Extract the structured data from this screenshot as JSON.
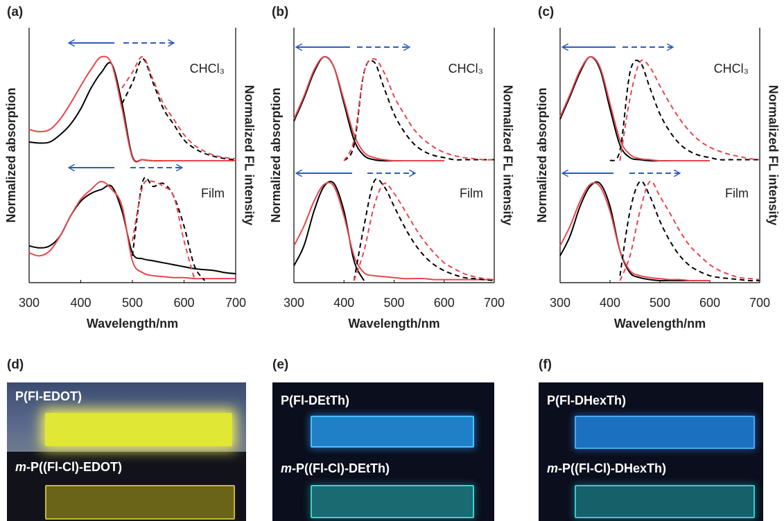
{
  "chart_data": [
    {
      "type": "line",
      "panel_label": "(a)",
      "xlabel": "Wavelength/nm",
      "ylabel": "Normalized absorption",
      "y2label": "Normalized FL intensity",
      "xlim": [
        300,
        700
      ],
      "xticks": [
        300,
        400,
        500,
        600,
        700
      ],
      "x": [
        300,
        320,
        340,
        360,
        380,
        400,
        420,
        440,
        460,
        480,
        500,
        520,
        540,
        560,
        580,
        600,
        620,
        640,
        660,
        680,
        700
      ],
      "subplots": [
        {
          "label": "CHCl₃",
          "ylim": [
            0,
            1
          ],
          "y2lim": [
            0,
            1
          ],
          "series": [
            {
              "color": "#000000",
              "dashed": false,
              "axis": "y",
              "values": [
                0.18,
                0.17,
                0.18,
                0.25,
                0.35,
                0.5,
                0.7,
                0.85,
                0.93,
                0.55,
                0.04,
                0.01,
                0,
                0,
                0,
                0,
                0,
                0,
                0,
                0,
                0
              ]
            },
            {
              "color": "#e8464b",
              "dashed": false,
              "axis": "y",
              "values": [
                0.3,
                0.28,
                0.3,
                0.4,
                0.55,
                0.72,
                0.88,
                1.0,
                0.93,
                0.5,
                0.03,
                0.01,
                0,
                0,
                0,
                0,
                0,
                0,
                0,
                0,
                0
              ]
            },
            {
              "color": "#000000",
              "dashed": true,
              "axis": "y2",
              "values": [
                null,
                null,
                null,
                null,
                null,
                null,
                null,
                null,
                null,
                0.55,
                0.75,
                0.98,
                0.75,
                0.5,
                0.35,
                0.2,
                0.12,
                0.07,
                0.04,
                0.02,
                0.01
              ]
            },
            {
              "color": "#e8464b",
              "dashed": true,
              "axis": "y2",
              "values": [
                null,
                null,
                null,
                null,
                null,
                null,
                null,
                null,
                null,
                0.7,
                0.85,
                1.0,
                0.78,
                0.55,
                0.4,
                0.25,
                0.15,
                0.09,
                0.05,
                0.03,
                0.02
              ]
            }
          ]
        },
        {
          "label": "Film",
          "ylim": [
            0,
            1
          ],
          "y2lim": [
            0,
            1
          ],
          "series": [
            {
              "color": "#000000",
              "dashed": false,
              "axis": "y",
              "values": [
                0.35,
                0.33,
                0.35,
                0.45,
                0.65,
                0.8,
                0.88,
                0.92,
                0.95,
                0.7,
                0.28,
                0.22,
                0.2,
                0.18,
                0.16,
                0.14,
                0.12,
                0.11,
                0.1,
                0.08,
                0.07
              ]
            },
            {
              "color": "#e8464b",
              "dashed": false,
              "axis": "y",
              "values": [
                0.28,
                0.25,
                0.3,
                0.45,
                0.65,
                0.82,
                0.92,
                1.0,
                0.92,
                0.75,
                0.2,
                0.08,
                0.05,
                0.04,
                0.03,
                0.03,
                0.02,
                0.02,
                0.02,
                0.02,
                0.02
              ]
            },
            {
              "color": "#000000",
              "dashed": true,
              "axis": "y2",
              "values": [
                null,
                null,
                null,
                null,
                null,
                null,
                null,
                null,
                null,
                null,
                0.25,
                1.0,
                0.95,
                0.98,
                0.85,
                0.55,
                0.15,
                0,
                null,
                null,
                null
              ]
            },
            {
              "color": "#e8464b",
              "dashed": true,
              "axis": "y2",
              "values": [
                null,
                null,
                null,
                null,
                null,
                null,
                null,
                null,
                null,
                null,
                0.4,
                0.95,
                1.0,
                0.95,
                0.85,
                0.4,
                0.02,
                null,
                null,
                null,
                null
              ]
            }
          ]
        }
      ]
    },
    {
      "type": "line",
      "panel_label": "(b)",
      "xlabel": "Wavelength/nm",
      "ylabel": "Normalized absorption",
      "y2label": "Normalized FL intensity",
      "xlim": [
        300,
        700
      ],
      "xticks": [
        300,
        400,
        500,
        600,
        700
      ],
      "x": [
        300,
        320,
        340,
        360,
        380,
        400,
        420,
        440,
        460,
        480,
        500,
        520,
        540,
        560,
        580,
        600,
        620,
        640,
        660,
        680,
        700
      ],
      "subplots": [
        {
          "label": "CHCl₃",
          "ylim": [
            0,
            1
          ],
          "y2lim": [
            0,
            1
          ],
          "series": [
            {
              "color": "#000000",
              "dashed": false,
              "axis": "y",
              "values": [
                0.38,
                0.6,
                0.85,
                1.0,
                0.9,
                0.55,
                0.2,
                0.05,
                0.01,
                0,
                0,
                0,
                0,
                0,
                0,
                0,
                null,
                null,
                null,
                null,
                null
              ]
            },
            {
              "color": "#e8464b",
              "dashed": false,
              "axis": "y",
              "values": [
                0.4,
                0.62,
                0.87,
                1.0,
                0.9,
                0.58,
                0.25,
                0.08,
                0.03,
                0.01,
                0,
                0,
                0,
                0,
                0,
                0,
                null,
                null,
                null,
                null,
                null
              ]
            },
            {
              "color": "#000000",
              "dashed": true,
              "axis": "y2",
              "values": [
                null,
                null,
                null,
                null,
                null,
                0,
                0.15,
                0.85,
                0.95,
                0.7,
                0.45,
                0.28,
                0.16,
                0.09,
                0.05,
                0.03,
                0.01,
                0.01,
                0.01,
                0.01,
                0.01
              ]
            },
            {
              "color": "#e8464b",
              "dashed": true,
              "axis": "y2",
              "values": [
                null,
                null,
                null,
                null,
                null,
                0,
                0.2,
                0.85,
                0.98,
                0.85,
                0.62,
                0.45,
                0.3,
                0.2,
                0.13,
                0.08,
                0.05,
                0.03,
                0.02,
                0.01,
                0.01
              ]
            }
          ]
        },
        {
          "label": "Film",
          "ylim": [
            0,
            1
          ],
          "y2lim": [
            0,
            1
          ],
          "series": [
            {
              "color": "#000000",
              "dashed": false,
              "axis": "y",
              "values": [
                0.15,
                0.35,
                0.7,
                0.95,
                0.98,
                0.7,
                0.2,
                0,
                null,
                null,
                null,
                null,
                null,
                null,
                null,
                null,
                null,
                null,
                null,
                null,
                null
              ]
            },
            {
              "color": "#e8464b",
              "dashed": false,
              "axis": "y",
              "values": [
                0.35,
                0.55,
                0.8,
                0.97,
                0.95,
                0.65,
                0.25,
                0.08,
                0.05,
                0.04,
                0.03,
                0.02,
                0.02,
                0.02,
                0.01,
                0.01,
                0.01,
                0.01,
                0.01,
                0.01,
                0.01
              ]
            },
            {
              "color": "#000000",
              "dashed": true,
              "axis": "y2",
              "values": [
                null,
                null,
                null,
                null,
                null,
                null,
                0,
                0.55,
                1.0,
                0.95,
                0.75,
                0.55,
                0.38,
                0.25,
                0.16,
                0.1,
                0.06,
                0.03,
                0.02,
                0.01,
                0
              ]
            },
            {
              "color": "#e8464b",
              "dashed": true,
              "axis": "y2",
              "values": [
                null,
                null,
                null,
                null,
                null,
                null,
                0,
                0.3,
                0.75,
                0.98,
                0.88,
                0.72,
                0.55,
                0.4,
                0.28,
                0.18,
                0.12,
                0.07,
                0.04,
                0.02,
                0.01
              ]
            }
          ]
        }
      ]
    },
    {
      "type": "line",
      "panel_label": "(c)",
      "xlabel": "Wavelength/nm",
      "ylabel": "Normalized absorption",
      "y2label": "Normalized FL intensity",
      "xlim": [
        300,
        700
      ],
      "xticks": [
        300,
        400,
        500,
        600,
        700
      ],
      "x": [
        300,
        320,
        340,
        360,
        380,
        400,
        420,
        440,
        460,
        480,
        500,
        520,
        540,
        560,
        580,
        600,
        620,
        640,
        660,
        680,
        700
      ],
      "subplots": [
        {
          "label": "CHCl₃",
          "ylim": [
            0,
            1
          ],
          "y2lim": [
            0,
            1
          ],
          "series": [
            {
              "color": "#000000",
              "dashed": false,
              "axis": "y",
              "values": [
                0.4,
                0.62,
                0.85,
                1.0,
                0.88,
                0.5,
                0.15,
                0.03,
                0.01,
                0,
                0,
                0,
                0,
                0,
                0,
                0,
                null,
                null,
                null,
                null,
                null
              ]
            },
            {
              "color": "#e8464b",
              "dashed": false,
              "axis": "y",
              "values": [
                0.42,
                0.64,
                0.87,
                1.0,
                0.9,
                0.55,
                0.2,
                0.06,
                0.02,
                0.01,
                0,
                0,
                0,
                0,
                0,
                0,
                null,
                null,
                null,
                null,
                null
              ]
            },
            {
              "color": "#000000",
              "dashed": true,
              "axis": "y2",
              "values": [
                null,
                null,
                null,
                null,
                null,
                0,
                0.1,
                0.85,
                0.95,
                0.7,
                0.45,
                0.28,
                0.16,
                0.09,
                0.05,
                0.03,
                0.01,
                0.01,
                0.01,
                0.01,
                0.01
              ]
            },
            {
              "color": "#e8464b",
              "dashed": true,
              "axis": "y2",
              "values": [
                null,
                null,
                null,
                null,
                null,
                null,
                0,
                0.6,
                0.95,
                0.9,
                0.72,
                0.55,
                0.4,
                0.28,
                0.19,
                0.13,
                0.09,
                0.06,
                0.04,
                0.02,
                0.01
              ]
            }
          ]
        },
        {
          "label": "Film",
          "ylim": [
            0,
            1
          ],
          "y2lim": [
            0,
            1
          ],
          "series": [
            {
              "color": "#000000",
              "dashed": false,
              "axis": "y",
              "values": [
                0.25,
                0.45,
                0.75,
                0.95,
                0.98,
                0.75,
                0.3,
                0.08,
                0.03,
                0.01,
                0,
                0,
                0,
                0,
                0,
                0,
                null,
                null,
                null,
                null,
                null
              ]
            },
            {
              "color": "#e8464b",
              "dashed": false,
              "axis": "y",
              "values": [
                0.35,
                0.55,
                0.8,
                0.97,
                0.95,
                0.7,
                0.3,
                0.1,
                0.05,
                0.03,
                0.02,
                0.01,
                0.01,
                0,
                0,
                0,
                null,
                null,
                null,
                null,
                null
              ]
            },
            {
              "color": "#000000",
              "dashed": true,
              "axis": "y2",
              "values": [
                null,
                null,
                null,
                null,
                null,
                null,
                0.05,
                0.7,
                1.0,
                0.85,
                0.6,
                0.4,
                0.25,
                0.15,
                0.09,
                0.05,
                0.03,
                0.02,
                0.01,
                0,
                0
              ]
            },
            {
              "color": "#e8464b",
              "dashed": true,
              "axis": "y2",
              "values": [
                null,
                null,
                null,
                null,
                null,
                null,
                0,
                0.25,
                0.7,
                1.0,
                0.85,
                0.68,
                0.5,
                0.35,
                0.25,
                0.16,
                0.1,
                0.06,
                0.03,
                0.02,
                0.01
              ]
            }
          ]
        }
      ]
    }
  ],
  "photos": [
    {
      "label": "(d)",
      "top": "P(Fl-EDOT)",
      "bottom": {
        "italic": "m",
        "rest": "-P((Fl-Cl)-EDOT)"
      }
    },
    {
      "label": "(e)",
      "top": "P(Fl-DEtTh)",
      "bottom": {
        "italic": "m",
        "rest": "-P((Fl-Cl)-DEtTh)"
      }
    },
    {
      "label": "(f)",
      "top": "P(Fl-DHexTh)",
      "bottom": {
        "italic": "m",
        "rest": "-P((Fl-Cl)-DHexTh)"
      }
    }
  ]
}
